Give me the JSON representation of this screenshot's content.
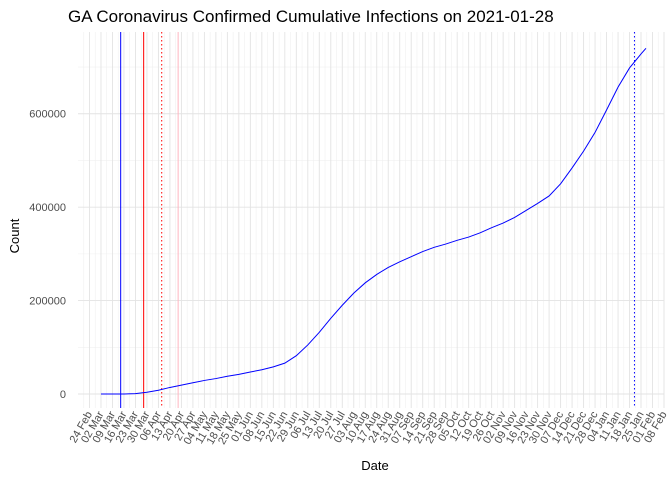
{
  "chart_data": {
    "type": "line",
    "title": "GA Coronavirus Confirmed Cumulative Infections on 2021-01-28",
    "xlabel": "Date",
    "ylabel": "Count",
    "x_axis_type": "date",
    "ylim": [
      -30000,
      775000
    ],
    "y_ticks": [
      0,
      200000,
      400000,
      600000
    ],
    "y_tick_labels": [
      "0",
      "200000",
      "400000",
      "600000"
    ],
    "x_range": [
      "2020-02-17",
      "2021-02-08"
    ],
    "x_ticks": [
      "2020-02-24",
      "2020-03-02",
      "2020-03-09",
      "2020-03-16",
      "2020-03-23",
      "2020-03-30",
      "2020-04-06",
      "2020-04-13",
      "2020-04-20",
      "2020-04-27",
      "2020-05-04",
      "2020-05-11",
      "2020-05-18",
      "2020-05-25",
      "2020-06-01",
      "2020-06-08",
      "2020-06-15",
      "2020-06-22",
      "2020-06-29",
      "2020-07-06",
      "2020-07-13",
      "2020-07-20",
      "2020-07-27",
      "2020-08-03",
      "2020-08-10",
      "2020-08-17",
      "2020-08-24",
      "2020-08-31",
      "2020-09-07",
      "2020-09-14",
      "2020-09-21",
      "2020-09-28",
      "2020-10-05",
      "2020-10-12",
      "2020-10-19",
      "2020-10-26",
      "2020-11-02",
      "2020-11-09",
      "2020-11-16",
      "2020-11-23",
      "2020-11-30",
      "2020-12-07",
      "2020-12-14",
      "2020-12-21",
      "2020-12-28",
      "2021-01-04",
      "2021-01-11",
      "2021-01-18",
      "2021-01-25",
      "2021-02-01",
      "2021-02-08"
    ],
    "x_tick_labels": [
      "24 Feb",
      "02 Mar",
      "09 Mar",
      "16 Mar",
      "23 Mar",
      "30 Mar",
      "06 Apr",
      "13 Apr",
      "20 Apr",
      "27 Apr",
      "04 May",
      "11 May",
      "18 May",
      "25 May",
      "01 Jun",
      "08 Jun",
      "15 Jun",
      "22 Jun",
      "29 Jun",
      "06 Jul",
      "13 Jul",
      "20 Jul",
      "27 Jul",
      "03 Aug",
      "10 Aug",
      "17 Aug",
      "24 Aug",
      "31 Aug",
      "07 Sep",
      "14 Sep",
      "21 Sep",
      "28 Sep",
      "05 Oct",
      "12 Oct",
      "19 Oct",
      "26 Oct",
      "02 Nov",
      "09 Nov",
      "16 Nov",
      "23 Nov",
      "30 Nov",
      "07 Dec",
      "14 Dec",
      "21 Dec",
      "28 Dec",
      "04 Jan",
      "11 Jan",
      "18 Jan",
      "25 Jan",
      "01 Feb",
      "08 Feb"
    ],
    "grid": true,
    "series": [
      {
        "color": "#0000ff",
        "x": [
          "2020-03-02",
          "2020-03-09",
          "2020-03-16",
          "2020-03-23",
          "2020-03-30",
          "2020-04-06",
          "2020-04-13",
          "2020-04-20",
          "2020-04-27",
          "2020-05-04",
          "2020-05-11",
          "2020-05-18",
          "2020-05-25",
          "2020-06-01",
          "2020-06-08",
          "2020-06-15",
          "2020-06-22",
          "2020-06-29",
          "2020-07-06",
          "2020-07-13",
          "2020-07-20",
          "2020-07-27",
          "2020-08-03",
          "2020-08-10",
          "2020-08-17",
          "2020-08-24",
          "2020-08-31",
          "2020-09-07",
          "2020-09-14",
          "2020-09-21",
          "2020-09-28",
          "2020-10-05",
          "2020-10-12",
          "2020-10-19",
          "2020-10-26",
          "2020-11-02",
          "2020-11-09",
          "2020-11-16",
          "2020-11-23",
          "2020-11-30",
          "2020-12-07",
          "2020-12-14",
          "2020-12-21",
          "2020-12-28",
          "2021-01-04",
          "2021-01-11",
          "2021-01-18",
          "2021-01-25",
          "2021-01-28"
        ],
        "y": [
          0,
          0,
          100,
          800,
          3800,
          8000,
          14000,
          19000,
          24000,
          29000,
          33000,
          38000,
          42000,
          47000,
          52000,
          58000,
          66000,
          82000,
          105000,
          132000,
          162000,
          190000,
          216000,
          238000,
          256000,
          271000,
          283000,
          294000,
          305000,
          314000,
          321000,
          329000,
          336000,
          345000,
          356000,
          366000,
          378000,
          393000,
          408000,
          424000,
          450000,
          484000,
          520000,
          560000,
          608000,
          657000,
          698000,
          728000,
          740000
        ]
      }
    ],
    "vertical_lines": [
      {
        "x": "2020-03-14",
        "color": "#0000ff",
        "style": "solid"
      },
      {
        "x": "2020-03-28",
        "color": "#ff0000",
        "style": "solid"
      },
      {
        "x": "2020-04-08",
        "color": "#ff0000",
        "style": "dotted"
      },
      {
        "x": "2020-04-18",
        "color": "#ffb6c1",
        "style": "solid"
      },
      {
        "x": "2021-01-21",
        "color": "#0000ff",
        "style": "dotted"
      }
    ]
  }
}
